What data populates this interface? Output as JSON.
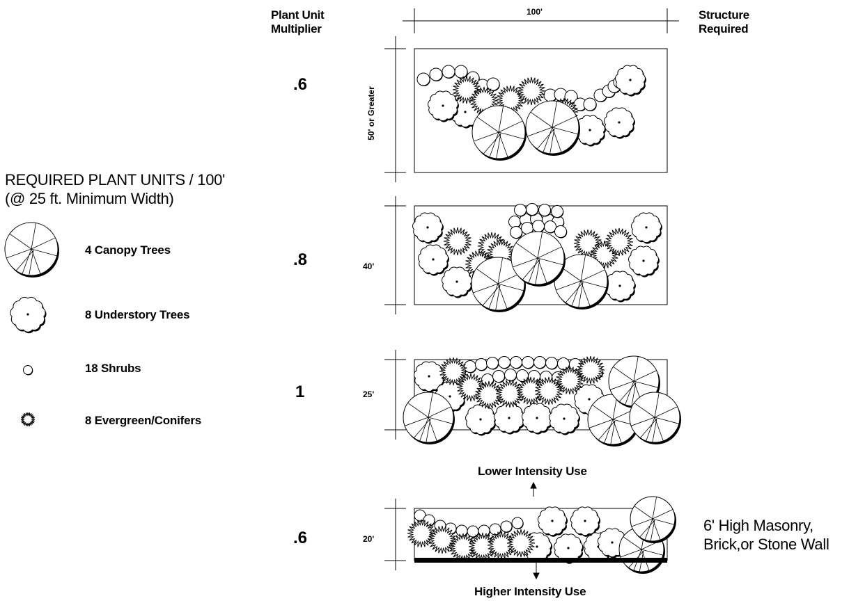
{
  "header": {
    "multiplier_label": [
      "Plant Unit",
      "Multiplier"
    ],
    "dimension": "100'",
    "structure_label": [
      "Structure",
      "Required"
    ]
  },
  "legend": {
    "title": [
      "REQUIRED PLANT UNITS / 100'",
      "(@ 25 ft. Minimum Width)"
    ],
    "items": [
      {
        "icon": "canopy-tree-icon",
        "label": "4 Canopy Trees"
      },
      {
        "icon": "understory-tree-icon",
        "label": "8 Understory Trees"
      },
      {
        "icon": "shrub-icon",
        "label": "18  Shrubs"
      },
      {
        "icon": "evergreen-conifer-icon",
        "label": "8 Evergreen/Conifers"
      }
    ]
  },
  "buffers": [
    {
      "multiplier": ".6",
      "width": "50' or Greater"
    },
    {
      "multiplier": ".8",
      "width": "40'"
    },
    {
      "multiplier": "1",
      "width": "25'"
    },
    {
      "multiplier": ".6",
      "width": "20'"
    }
  ],
  "uses": {
    "lower": "Lower Intensity Use",
    "higher": "Higher Intensity Use"
  },
  "wall_label": [
    "6' High Masonry,",
    "Brick,or Stone Wall"
  ]
}
